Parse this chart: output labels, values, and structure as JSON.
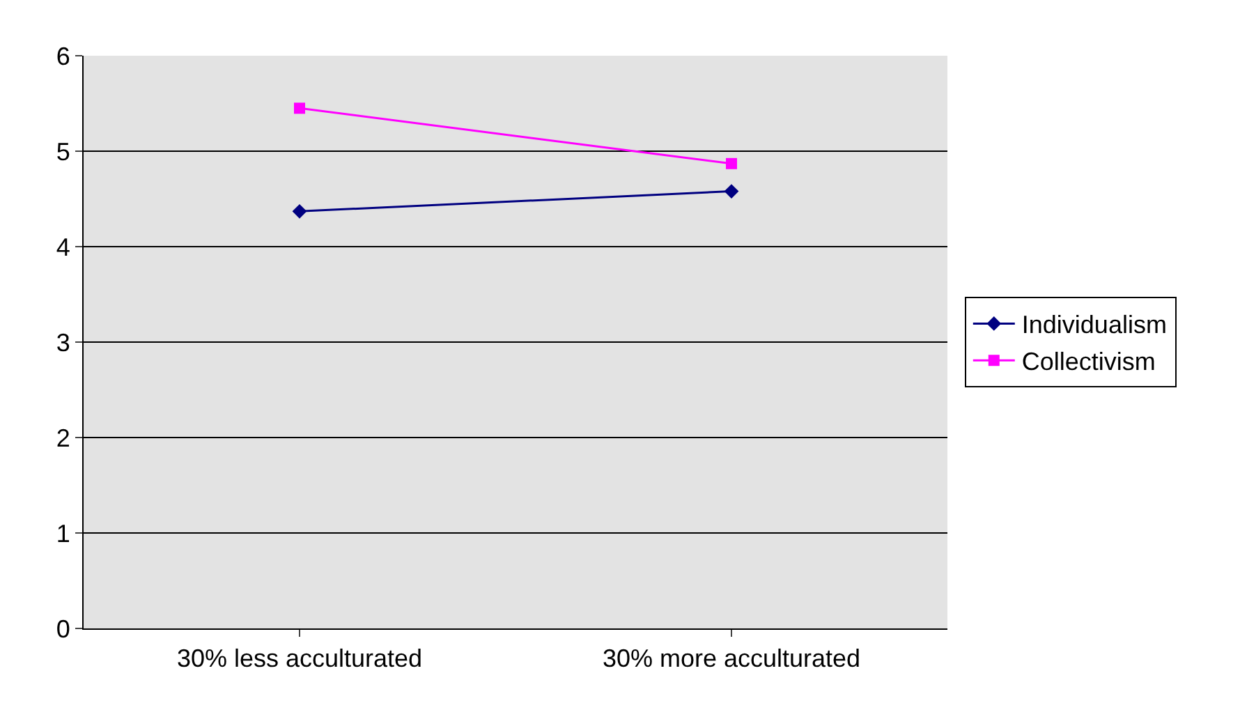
{
  "chart_data": {
    "type": "line",
    "categories": [
      "30% less acculturated",
      "30% more acculturated"
    ],
    "series": [
      {
        "name": "Individualism",
        "color": "#000080",
        "values": [
          4.37,
          4.58
        ],
        "marker": "diamond"
      },
      {
        "name": "Collectivism",
        "color": "#ff00ff",
        "values": [
          5.45,
          4.87
        ],
        "marker": "square"
      }
    ],
    "ylim": [
      0,
      6
    ],
    "yticks": [
      0,
      1,
      2,
      3,
      4,
      5,
      6
    ],
    "grid": "y",
    "legend": "right",
    "line_style": "solid"
  }
}
